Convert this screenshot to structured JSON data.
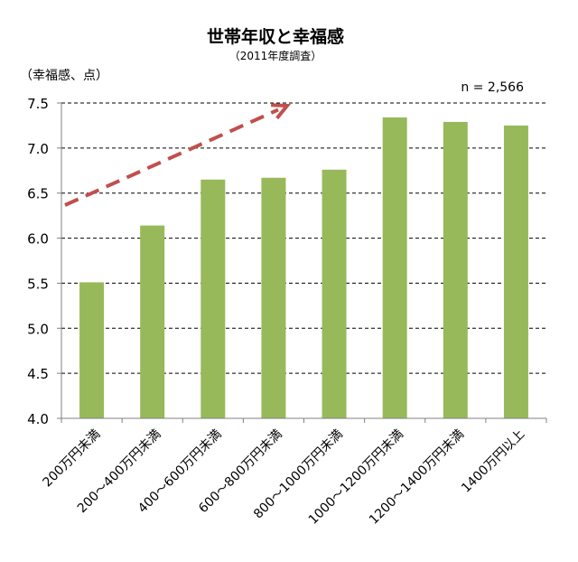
{
  "chart_data": {
    "type": "bar",
    "title": "世帯年収と幸福感",
    "subtitle": "（2011年度調査）",
    "ylabel": "（幸福感、点）",
    "xlabel": "",
    "annotation": "n = 2,566",
    "categories": [
      "200万円未満",
      "200～400万円未満",
      "400～600万円未満",
      "600～800万円未満",
      "800～1000万円未満",
      "1000～1200万円未満",
      "1200～1400万円未満",
      "1400万円以上"
    ],
    "values": [
      5.51,
      6.14,
      6.65,
      6.67,
      6.76,
      7.34,
      7.29,
      7.25
    ],
    "ylim": [
      4.0,
      7.5
    ],
    "yticks": [
      "4.0",
      "4.5",
      "5.0",
      "5.5",
      "6.0",
      "6.5",
      "7.0",
      "7.5"
    ],
    "grid": "horizontal-dashed",
    "legend": "none",
    "trend_arrow": "dashed-upward",
    "colors": {
      "bar": "#97b95a",
      "arrow": "#c0504d",
      "axis": "#808080",
      "grid": "#000000"
    }
  }
}
